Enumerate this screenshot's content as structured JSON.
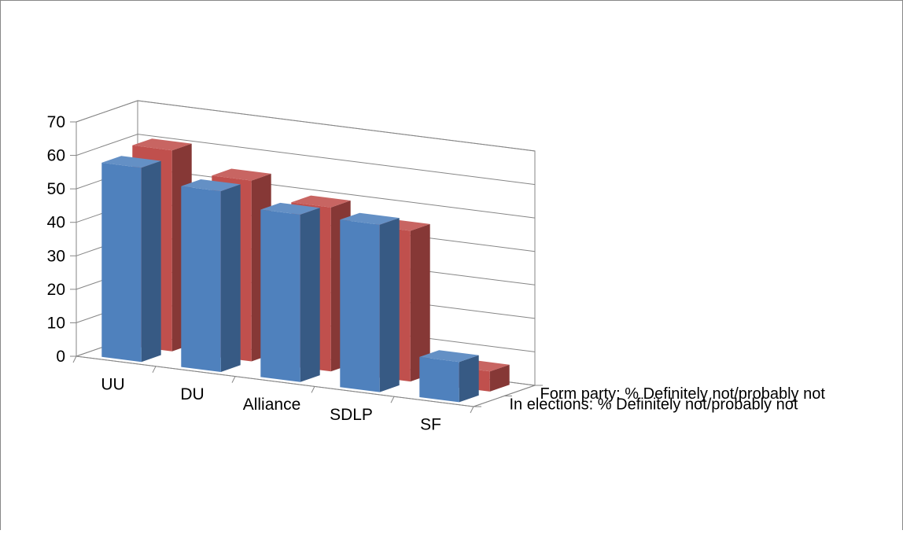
{
  "chart_data": {
    "type": "bar",
    "projection": "3d-column",
    "categories": [
      "UU",
      "DU",
      "Alliance",
      "SDLP",
      "SF"
    ],
    "series": [
      {
        "name": "In elections: % Definitely not/probably not",
        "values": [
          58,
          54,
          50,
          50,
          12
        ],
        "color": "#4F81BD"
      },
      {
        "name": "Form party: % Definitely not/probably not",
        "values": [
          60,
          54,
          49,
          45,
          6
        ],
        "color": "#C0504D"
      }
    ],
    "ylim": [
      0,
      70
    ],
    "yticks": [
      "0",
      "10",
      "20",
      "30",
      "40",
      "50",
      "60",
      "70"
    ],
    "grid": true,
    "title": "",
    "xlabel": "",
    "ylabel": ""
  }
}
